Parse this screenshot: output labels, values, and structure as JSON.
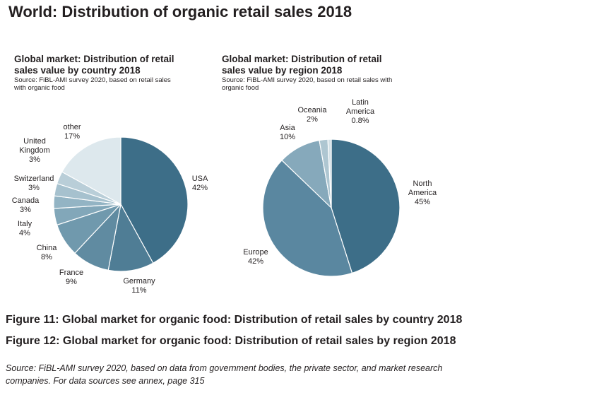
{
  "page_title": "World: Distribution of organic retail sales 2018",
  "chart_data": [
    {
      "type": "pie",
      "title": "Global market: Distribution of retail sales value by country 2018",
      "title_lines": [
        "Global market: Distribution of retail",
        "sales value by country 2018"
      ],
      "source_lines": [
        "Source: FiBL-AMI survey 2020, based on retail sales",
        "with organic food"
      ],
      "slices": [
        {
          "name": "USA",
          "label_lines": [
            "USA"
          ],
          "pct_label": "42%",
          "value": 42,
          "color": "#3d6e88"
        },
        {
          "name": "Germany",
          "label_lines": [
            "Germany"
          ],
          "pct_label": "11%",
          "value": 11,
          "color": "#4f7d95"
        },
        {
          "name": "France",
          "label_lines": [
            "France"
          ],
          "pct_label": "9%",
          "value": 9,
          "color": "#608ba1"
        },
        {
          "name": "China",
          "label_lines": [
            "China"
          ],
          "pct_label": "8%",
          "value": 8,
          "color": "#7099ad"
        },
        {
          "name": "Italy",
          "label_lines": [
            "Italy"
          ],
          "pct_label": "4%",
          "value": 4,
          "color": "#82a7b9"
        },
        {
          "name": "Canada",
          "label_lines": [
            "Canada"
          ],
          "pct_label": "3%",
          "value": 3,
          "color": "#93b4c4"
        },
        {
          "name": "Switzerland",
          "label_lines": [
            "Switzerland"
          ],
          "pct_label": "3%",
          "value": 3,
          "color": "#a6c1ce"
        },
        {
          "name": "United Kingdom",
          "label_lines": [
            "United",
            "Kingdom"
          ],
          "pct_label": "3%",
          "value": 3,
          "color": "#b9ced8"
        },
        {
          "name": "other",
          "label_lines": [
            "other"
          ],
          "pct_label": "17%",
          "value": 17,
          "color": "#dde8ed"
        }
      ]
    },
    {
      "type": "pie",
      "title": "Global market: Distribution of retail sales value by region 2018",
      "title_lines": [
        "Global market: Distribution of retail",
        "sales value by region 2018"
      ],
      "source_lines": [
        "Source: FiBL-AMI survey 2020, based on retail sales with",
        "organic food"
      ],
      "slices": [
        {
          "name": "North America",
          "label_lines": [
            "North",
            "America"
          ],
          "pct_label": "45%",
          "value": 45,
          "color": "#3d6e88"
        },
        {
          "name": "Europe",
          "label_lines": [
            "Europe"
          ],
          "pct_label": "42%",
          "value": 42,
          "color": "#5a87a0"
        },
        {
          "name": "Asia",
          "label_lines": [
            "Asia"
          ],
          "pct_label": "10%",
          "value": 10,
          "color": "#86a9bb"
        },
        {
          "name": "Oceania",
          "label_lines": [
            "Oceania"
          ],
          "pct_label": "2%",
          "value": 2,
          "color": "#aec6d1"
        },
        {
          "name": "Latin America",
          "label_lines": [
            "Latin",
            "America"
          ],
          "pct_label": "0.8%",
          "value": 0.8,
          "color": "#d3e0e6"
        }
      ]
    }
  ],
  "captions": [
    "Figure 11: Global market for organic food: Distribution of retail sales by country 2018",
    "Figure 12: Global market for organic food: Distribution of retail sales by region 2018"
  ],
  "source_note": {
    "line1": "Source: FiBL-AMI survey 2020, based on data from government bodies, the private sector, and market research",
    "line2": "companies. For data sources see annex, page 315"
  }
}
